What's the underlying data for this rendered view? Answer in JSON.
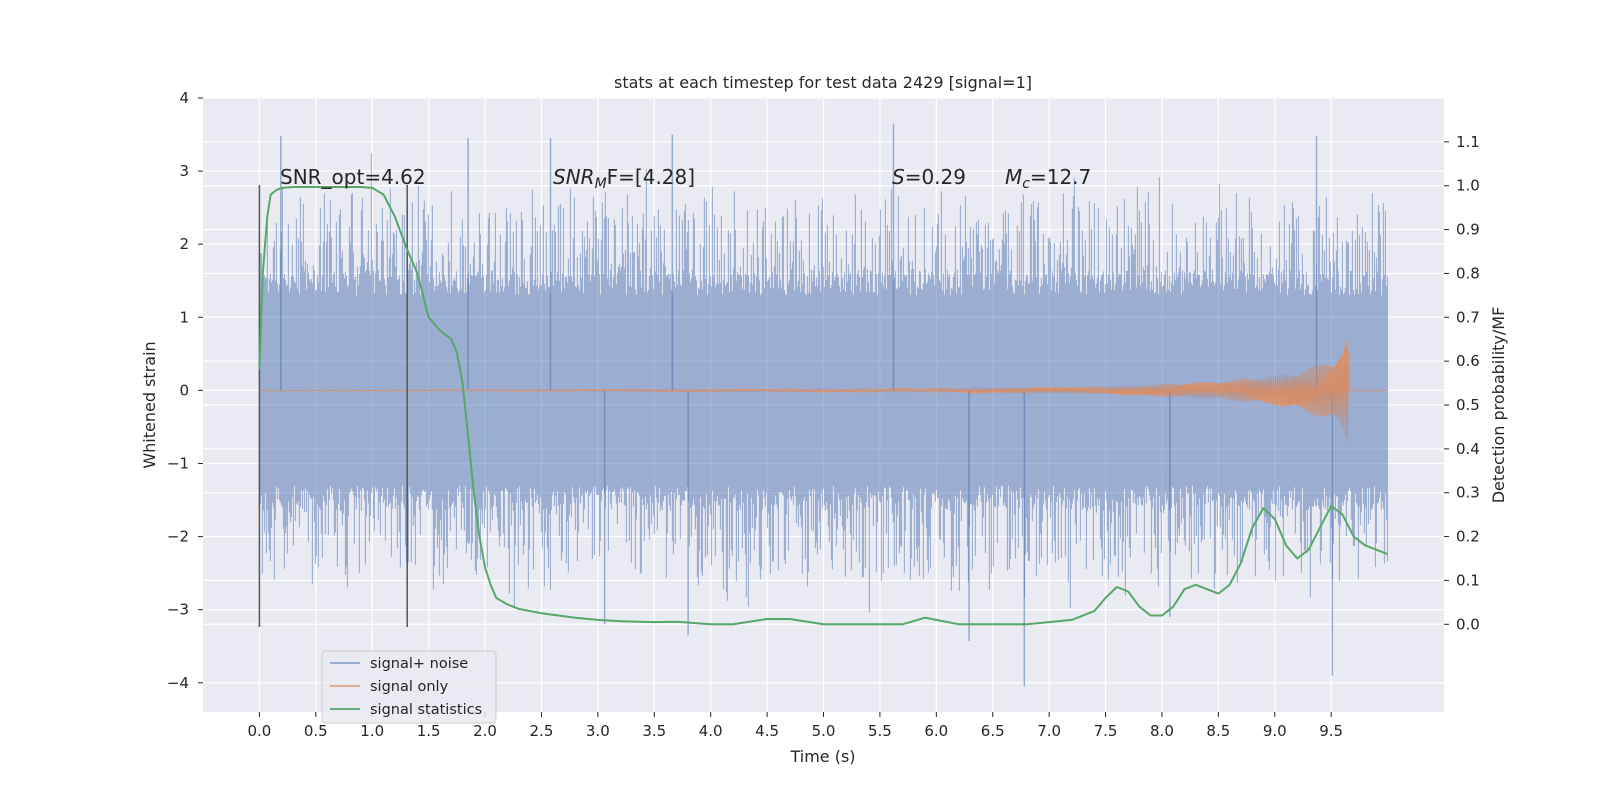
{
  "chart_data": {
    "type": "line",
    "title": "stats at each timestep for test data 2429 [signal=1]",
    "xlabel": "Time (s)",
    "ylabel": "Whitened strain",
    "y2label": "Detection probability/MF",
    "xlim": [
      -0.5,
      10.5
    ],
    "ylim": [
      -4.4,
      4.0
    ],
    "y2lim": [
      -0.2,
      1.2
    ],
    "x_ticks": [
      "0.0",
      "0.5",
      "1.0",
      "1.5",
      "2.0",
      "2.5",
      "3.0",
      "3.5",
      "4.0",
      "4.5",
      "5.0",
      "5.5",
      "6.0",
      "6.5",
      "7.0",
      "7.5",
      "8.0",
      "8.5",
      "9.0",
      "9.5"
    ],
    "x_tick_values": [
      0.0,
      0.5,
      1.0,
      1.5,
      2.0,
      2.5,
      3.0,
      3.5,
      4.0,
      4.5,
      5.0,
      5.5,
      6.0,
      6.5,
      7.0,
      7.5,
      8.0,
      8.5,
      9.0,
      9.5
    ],
    "y_ticks": [
      "4",
      "3",
      "2",
      "1",
      "0",
      "−1",
      "−2",
      "−3",
      "−4"
    ],
    "y_tick_values": [
      4,
      3,
      2,
      1,
      0,
      -1,
      -2,
      -3,
      -4
    ],
    "y2_ticks": [
      "1.1",
      "1.0",
      "0.9",
      "0.8",
      "0.7",
      "0.6",
      "0.5",
      "0.4",
      "0.3",
      "0.2",
      "0.1",
      "0.0"
    ],
    "y2_tick_values": [
      1.1,
      1.0,
      0.9,
      0.8,
      0.7,
      0.6,
      0.5,
      0.4,
      0.3,
      0.2,
      0.1,
      0.0
    ],
    "grid": true,
    "legend_position": "lower-left",
    "legend": [
      "signal+ noise",
      "signal only",
      "signal statistics"
    ],
    "colors": {
      "background": "#eaeaf2",
      "grid": "#ffffff",
      "noise": "#4c72b0",
      "signal": "#dd8452",
      "stats": "#55a868",
      "vline": "#555555"
    },
    "annotations": {
      "snr_opt": "SNR_opt=4.62",
      "snr_mf_sym": "SNR",
      "snr_mf_sub": "M",
      "snr_mf_rest": "F=[4.28]",
      "s_sym": "S",
      "s_rest": "=0.29",
      "mc_sym": "M",
      "mc_sub": "c",
      "mc_rest": "=12.7"
    },
    "vertical_lines_x": [
      0.0,
      1.31
    ],
    "noise": {
      "x_range": [
        0.0,
        10.0
      ],
      "core_amplitude": 1.3,
      "peak_spikes": [
        {
          "x": 0.19,
          "y": 3.48
        },
        {
          "x": 1.85,
          "y": 3.45
        },
        {
          "x": 2.58,
          "y": 3.45
        },
        {
          "x": 3.66,
          "y": 3.5
        },
        {
          "x": 5.62,
          "y": 3.65
        },
        {
          "x": 9.37,
          "y": 3.48
        },
        {
          "x": 3.06,
          "y": -3.2
        },
        {
          "x": 3.8,
          "y": -3.35
        },
        {
          "x": 6.29,
          "y": -3.43
        },
        {
          "x": 6.78,
          "y": -4.05
        },
        {
          "x": 9.51,
          "y": -3.9
        },
        {
          "x": 8.07,
          "y": -3.1
        }
      ]
    },
    "signal_envelope": [
      {
        "x": 0.0,
        "y": 0.0
      },
      {
        "x": 6.0,
        "y": 0.02
      },
      {
        "x": 7.5,
        "y": 0.05
      },
      {
        "x": 8.5,
        "y": 0.12
      },
      {
        "x": 9.0,
        "y": 0.2
      },
      {
        "x": 9.3,
        "y": 0.3
      },
      {
        "x": 9.5,
        "y": 0.42
      },
      {
        "x": 9.6,
        "y": 0.55
      },
      {
        "x": 9.65,
        "y": 0.75
      },
      {
        "x": 9.66,
        "y": 0.0
      },
      {
        "x": 10.0,
        "y": 0.0
      }
    ],
    "stats_series": {
      "x": [
        0.0,
        0.03,
        0.07,
        0.1,
        0.15,
        0.2,
        0.3,
        0.5,
        0.7,
        0.9,
        1.0,
        1.1,
        1.2,
        1.3,
        1.4,
        1.5,
        1.6,
        1.7,
        1.75,
        1.8,
        1.85,
        1.9,
        1.95,
        2.0,
        2.05,
        2.1,
        2.2,
        2.3,
        2.5,
        2.8,
        3.0,
        3.2,
        3.5,
        3.7,
        4.0,
        4.2,
        4.5,
        4.7,
        5.0,
        5.2,
        5.5,
        5.7,
        5.9,
        6.0,
        6.2,
        6.5,
        6.8,
        7.0,
        7.2,
        7.4,
        7.5,
        7.6,
        7.7,
        7.8,
        7.9,
        8.0,
        8.1,
        8.2,
        8.3,
        8.4,
        8.5,
        8.6,
        8.7,
        8.8,
        8.9,
        9.0,
        9.1,
        9.2,
        9.3,
        9.4,
        9.5,
        9.6,
        9.7,
        9.8,
        9.9,
        10.0
      ],
      "y": [
        0.58,
        0.8,
        0.93,
        0.98,
        0.99,
        0.995,
        0.997,
        0.997,
        0.997,
        0.997,
        0.995,
        0.98,
        0.93,
        0.86,
        0.8,
        0.7,
        0.67,
        0.65,
        0.62,
        0.55,
        0.43,
        0.3,
        0.2,
        0.13,
        0.09,
        0.06,
        0.045,
        0.035,
        0.025,
        0.015,
        0.01,
        0.007,
        0.005,
        0.006,
        0.0,
        0.0,
        0.012,
        0.012,
        0.0,
        0.0,
        0.0,
        0.0,
        0.015,
        0.01,
        0.0,
        0.0,
        0.0,
        0.005,
        0.01,
        0.03,
        0.06,
        0.085,
        0.075,
        0.04,
        0.02,
        0.02,
        0.04,
        0.08,
        0.09,
        0.08,
        0.07,
        0.09,
        0.14,
        0.22,
        0.265,
        0.24,
        0.18,
        0.15,
        0.17,
        0.22,
        0.27,
        0.25,
        0.2,
        0.18,
        0.17,
        0.16
      ]
    }
  }
}
